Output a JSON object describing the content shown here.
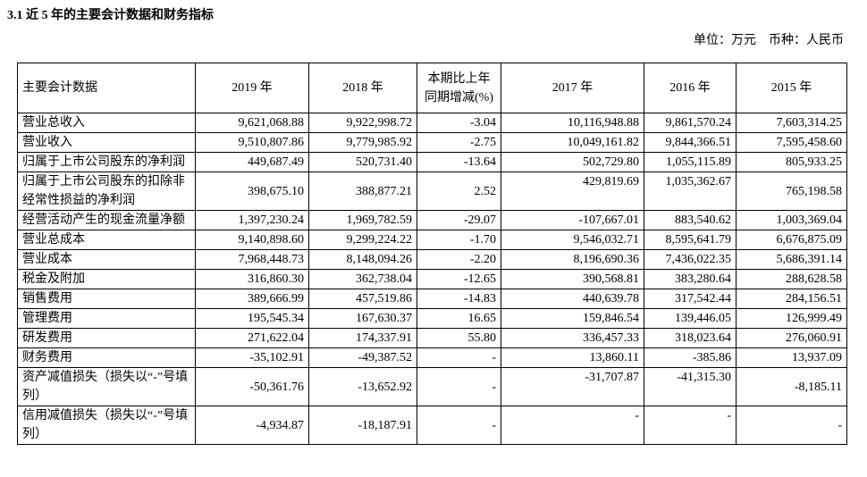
{
  "header": {
    "title": "3.1 近 5 年的主要会计数据和财务指标",
    "unit": "单位：万元　币种：人民币"
  },
  "table": {
    "columns": [
      "主要会计数据",
      "2019 年",
      "2018 年",
      "本期比上年同期增减(%)",
      "2017 年",
      "2016 年",
      "2015 年"
    ],
    "rows": [
      [
        "营业总收入",
        "9,621,068.88",
        "9,922,998.72",
        "-3.04",
        "10,116,948.88",
        "9,861,570.24",
        "7,603,314.25"
      ],
      [
        "营业收入",
        "9,510,807.86",
        "9,779,985.92",
        "-2.75",
        "10,049,161.82",
        "9,844,366.51",
        "7,595,458.60"
      ],
      [
        "归属于上市公司股东的净利润",
        "449,687.49",
        "520,731.40",
        "-13.64",
        "502,729.80",
        "1,055,115.89",
        "805,933.25"
      ],
      [
        "归属于上市公司股东的扣除非经常性损益的净利润",
        "398,675.10",
        "388,877.21",
        "2.52",
        "429,819.69",
        "1,035,362.67",
        "765,198.58"
      ],
      [
        "经营活动产生的现金流量净额",
        "1,397,230.24",
        "1,969,782.59",
        "-29.07",
        "-107,667.01",
        "883,540.62",
        "1,003,369.04"
      ],
      [
        "营业总成本",
        "9,140,898.60",
        "9,299,224.22",
        "-1.70",
        "9,546,032.71",
        "8,595,641.79",
        "6,676,875.09"
      ],
      [
        "营业成本",
        "7,968,448.73",
        "8,148,094.26",
        "-2.20",
        "8,196,690.36",
        "7,436,022.35",
        "5,686,391.14"
      ],
      [
        "税金及附加",
        "316,860.30",
        "362,738.04",
        "-12.65",
        "390,568.81",
        "383,280.64",
        "288,628.58"
      ],
      [
        "销售费用",
        "389,666.99",
        "457,519.86",
        "-14.83",
        "440,639.78",
        "317,542.44",
        "284,156.51"
      ],
      [
        "管理费用",
        "195,545.34",
        "167,630.37",
        "16.65",
        "159,846.54",
        "139,446.05",
        "126,999.49"
      ],
      [
        "研发费用",
        "271,622.04",
        "174,337.91",
        "55.80",
        "336,457.33",
        "318,023.64",
        "276,060.91"
      ],
      [
        "财务费用",
        "-35,102.91",
        "-49,387.52",
        "-",
        "13,860.11",
        "-385.86",
        "13,937.09"
      ],
      [
        "资产减值损失（损失以“-”号填列）",
        "-50,361.76",
        "-13,652.92",
        "-",
        "-31,707.87",
        "-41,315.30",
        "-8,185.11"
      ],
      [
        "信用减值损失（损失以“-”号填列）",
        "-4,934.87",
        "-18,187.91",
        "-",
        "-",
        "-",
        "-"
      ]
    ]
  }
}
